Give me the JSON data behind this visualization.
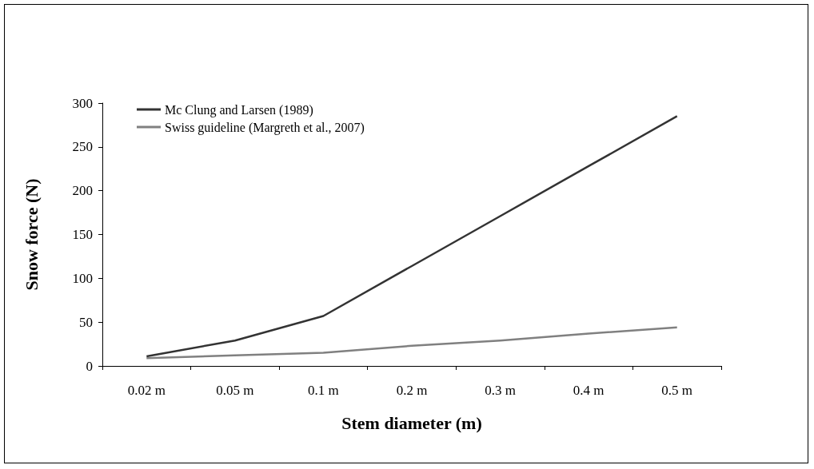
{
  "chart_data": {
    "type": "line",
    "xlabel": "Stem diameter (m)",
    "ylabel": "Snow force (N)",
    "categories": [
      "0.02 m",
      "0.05 m",
      "0.1 m",
      "0.2 m",
      "0.3 m",
      "0.4 m",
      "0.5 m"
    ],
    "series": [
      {
        "name": "Mc Clung and Larsen (1989)",
        "color": "#333333",
        "values": [
          11,
          29,
          57,
          114,
          171,
          228,
          285
        ]
      },
      {
        "name": "Swiss guideline (Margreth et al., 2007)",
        "color": "#808080",
        "values": [
          9,
          12,
          15,
          23,
          29,
          37,
          44
        ]
      }
    ],
    "ylim": [
      0,
      300
    ],
    "yticks": [
      0,
      50,
      100,
      150,
      200,
      250,
      300
    ],
    "grid": false,
    "legend": "top left",
    "marker": "none",
    "line_style": "solid"
  }
}
